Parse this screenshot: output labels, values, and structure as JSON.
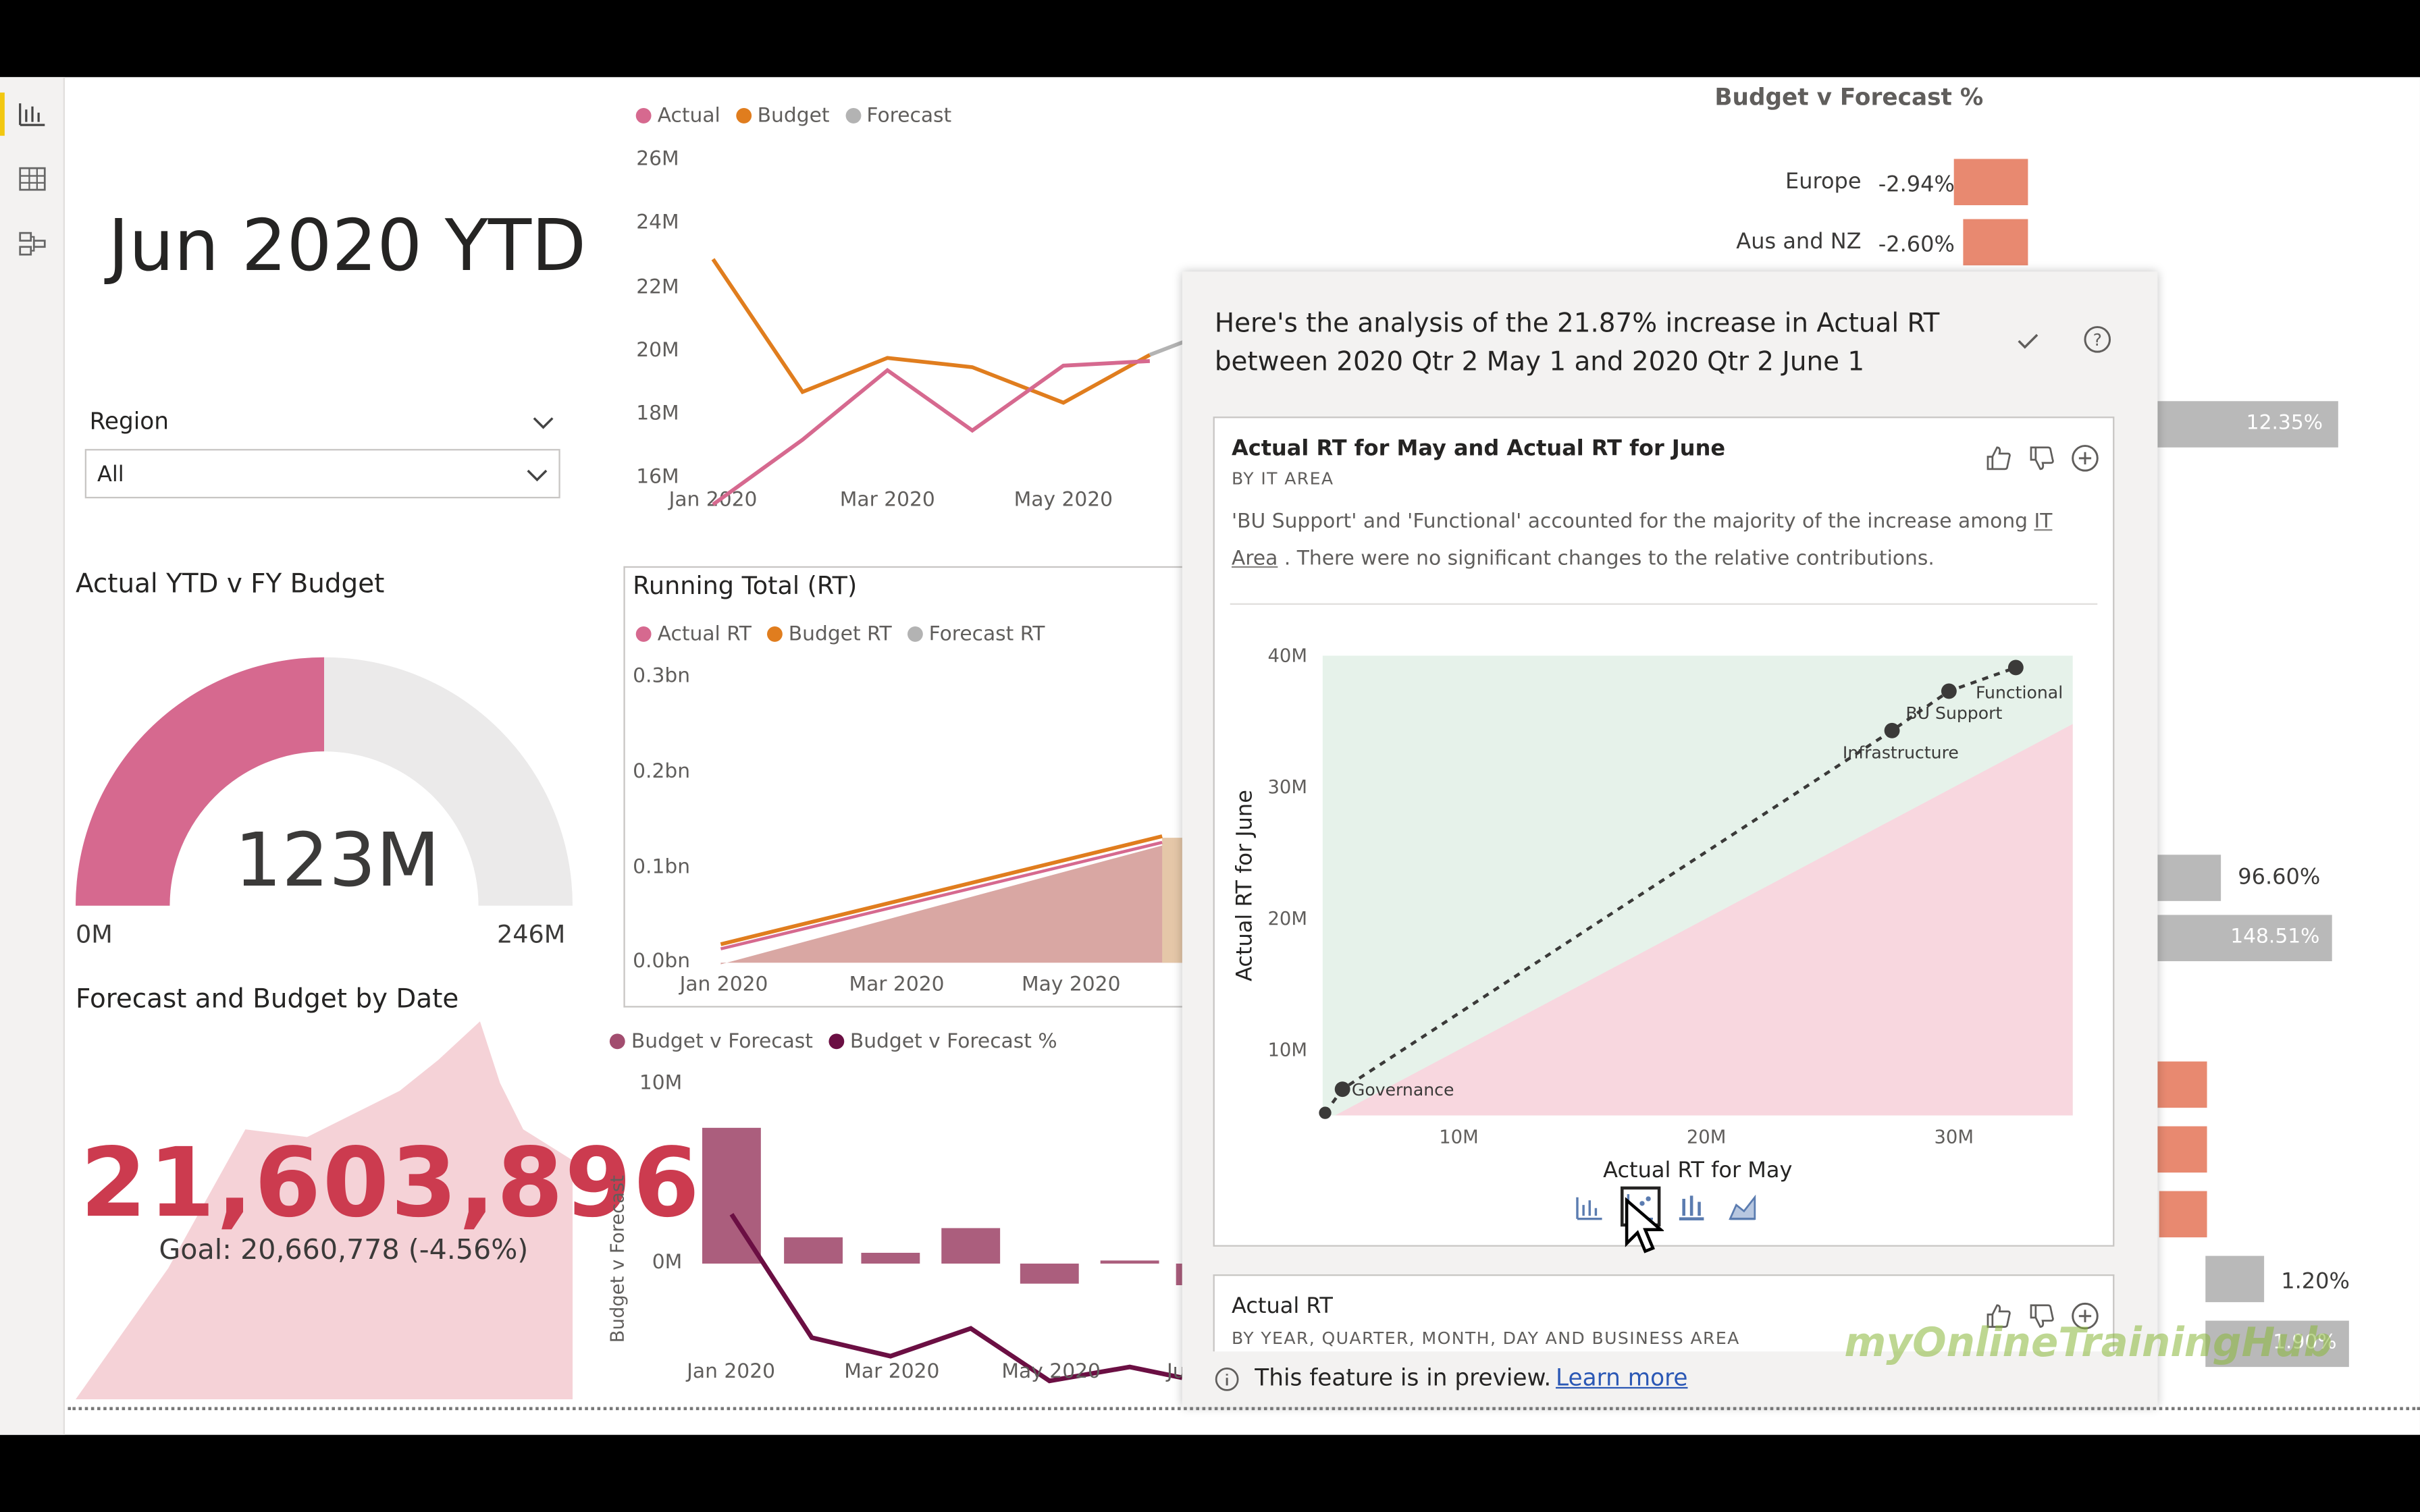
{
  "page": {
    "title": "Jun 2020 YTD"
  },
  "nav": {
    "items": [
      {
        "name": "report-view-icon"
      },
      {
        "name": "data-view-icon"
      },
      {
        "name": "model-view-icon"
      }
    ]
  },
  "region_filter": {
    "label": "Region",
    "value": "All"
  },
  "gauge": {
    "title": "Actual YTD v FY Budget",
    "value_label": "123M",
    "min_label": "0M",
    "max_label": "246M",
    "fraction": 0.5,
    "color": "#d6698f"
  },
  "kpi": {
    "title": "Forecast and Budget by Date",
    "value": "21,603,896",
    "goal": "Goal: 20,660,778 (-4.56%)",
    "color": "#cc3b4f"
  },
  "monthly_chart": {
    "legend": [
      "Actual",
      "Budget",
      "Forecast"
    ],
    "colors": [
      "#d6698f",
      "#e07d1e",
      "#b3b3b3"
    ],
    "y_ticks": [
      "26M",
      "24M",
      "22M",
      "20M",
      "18M",
      "16M"
    ],
    "x_ticks": [
      "Jan 2020",
      "Mar 2020",
      "May 2020"
    ]
  },
  "running_total": {
    "title": "Running Total (RT)",
    "legend": [
      "Actual RT",
      "Budget RT",
      "Forecast RT"
    ],
    "y_ticks": [
      "0.3bn",
      "0.2bn",
      "0.1bn",
      "0.0bn"
    ],
    "x_ticks": [
      "Jan 2020",
      "Mar 2020",
      "May 2020"
    ]
  },
  "bvf_chart": {
    "legend": [
      "Budget v Forecast",
      "Budget v Forecast %"
    ],
    "colors": [
      "#a24d6f",
      "#6b0f43"
    ],
    "y_label": "Budget v Forecast",
    "y_ticks": [
      "10M",
      "0M"
    ],
    "x_ticks": [
      "Jan 2020",
      "Mar 2020",
      "May 2020",
      "Ju"
    ]
  },
  "bvf_percent": {
    "title": "Budget v Forecast %",
    "rows": [
      {
        "label": "Europe",
        "value": "-2.94%",
        "pct": -2.94
      },
      {
        "label": "Aus and NZ",
        "value": "-2.60%",
        "pct": -2.6
      }
    ],
    "right_labels": [
      "12.35%",
      "96.60%",
      "148.51%",
      "1.20%",
      "1.90%"
    ]
  },
  "analysis": {
    "header": "Here's the analysis of the 21.87% increase in Actual RT between 2020 Qtr 2 May 1 and 2020 Qtr 2 June 1",
    "card1": {
      "title": "Actual RT for May and Actual RT for June",
      "subtitle": "BY IT AREA",
      "text_before": "'BU Support' and 'Functional' accounted for the majority of the increase among ",
      "text_link": "IT Area",
      "text_after": " . There were no significant changes to the relative contributions."
    },
    "card2": {
      "title": "Actual RT",
      "subtitle": "BY YEAR, QUARTER, MONTH, DAY AND BUSINESS AREA"
    },
    "footer": {
      "text": "This feature is in preview.",
      "link": "Learn more"
    }
  },
  "chart_data": {
    "type": "scatter",
    "xlabel": "Actual RT for May",
    "ylabel": "Actual RT for June",
    "x_ticks": [
      "10M",
      "20M",
      "30M"
    ],
    "y_ticks": [
      "40M",
      "30M",
      "20M",
      "10M"
    ],
    "xlim": [
      4.5,
      34.8
    ],
    "ylim": [
      5,
      40
    ],
    "points": [
      {
        "label": "Governance",
        "x": 5.3,
        "y": 7.0
      },
      {
        "label": "Infrastructure",
        "x": 27.5,
        "y": 34.3
      },
      {
        "label": "BU Support",
        "x": 29.8,
        "y": 37.3
      },
      {
        "label": "Functional",
        "x": 32.5,
        "y": 39.1
      }
    ],
    "colors": {
      "increase_zone": "#e6f2ea",
      "decrease_zone": "#f8d7df",
      "points": "#3b3a39"
    }
  },
  "watermark": "myOnlineTrainingHub"
}
